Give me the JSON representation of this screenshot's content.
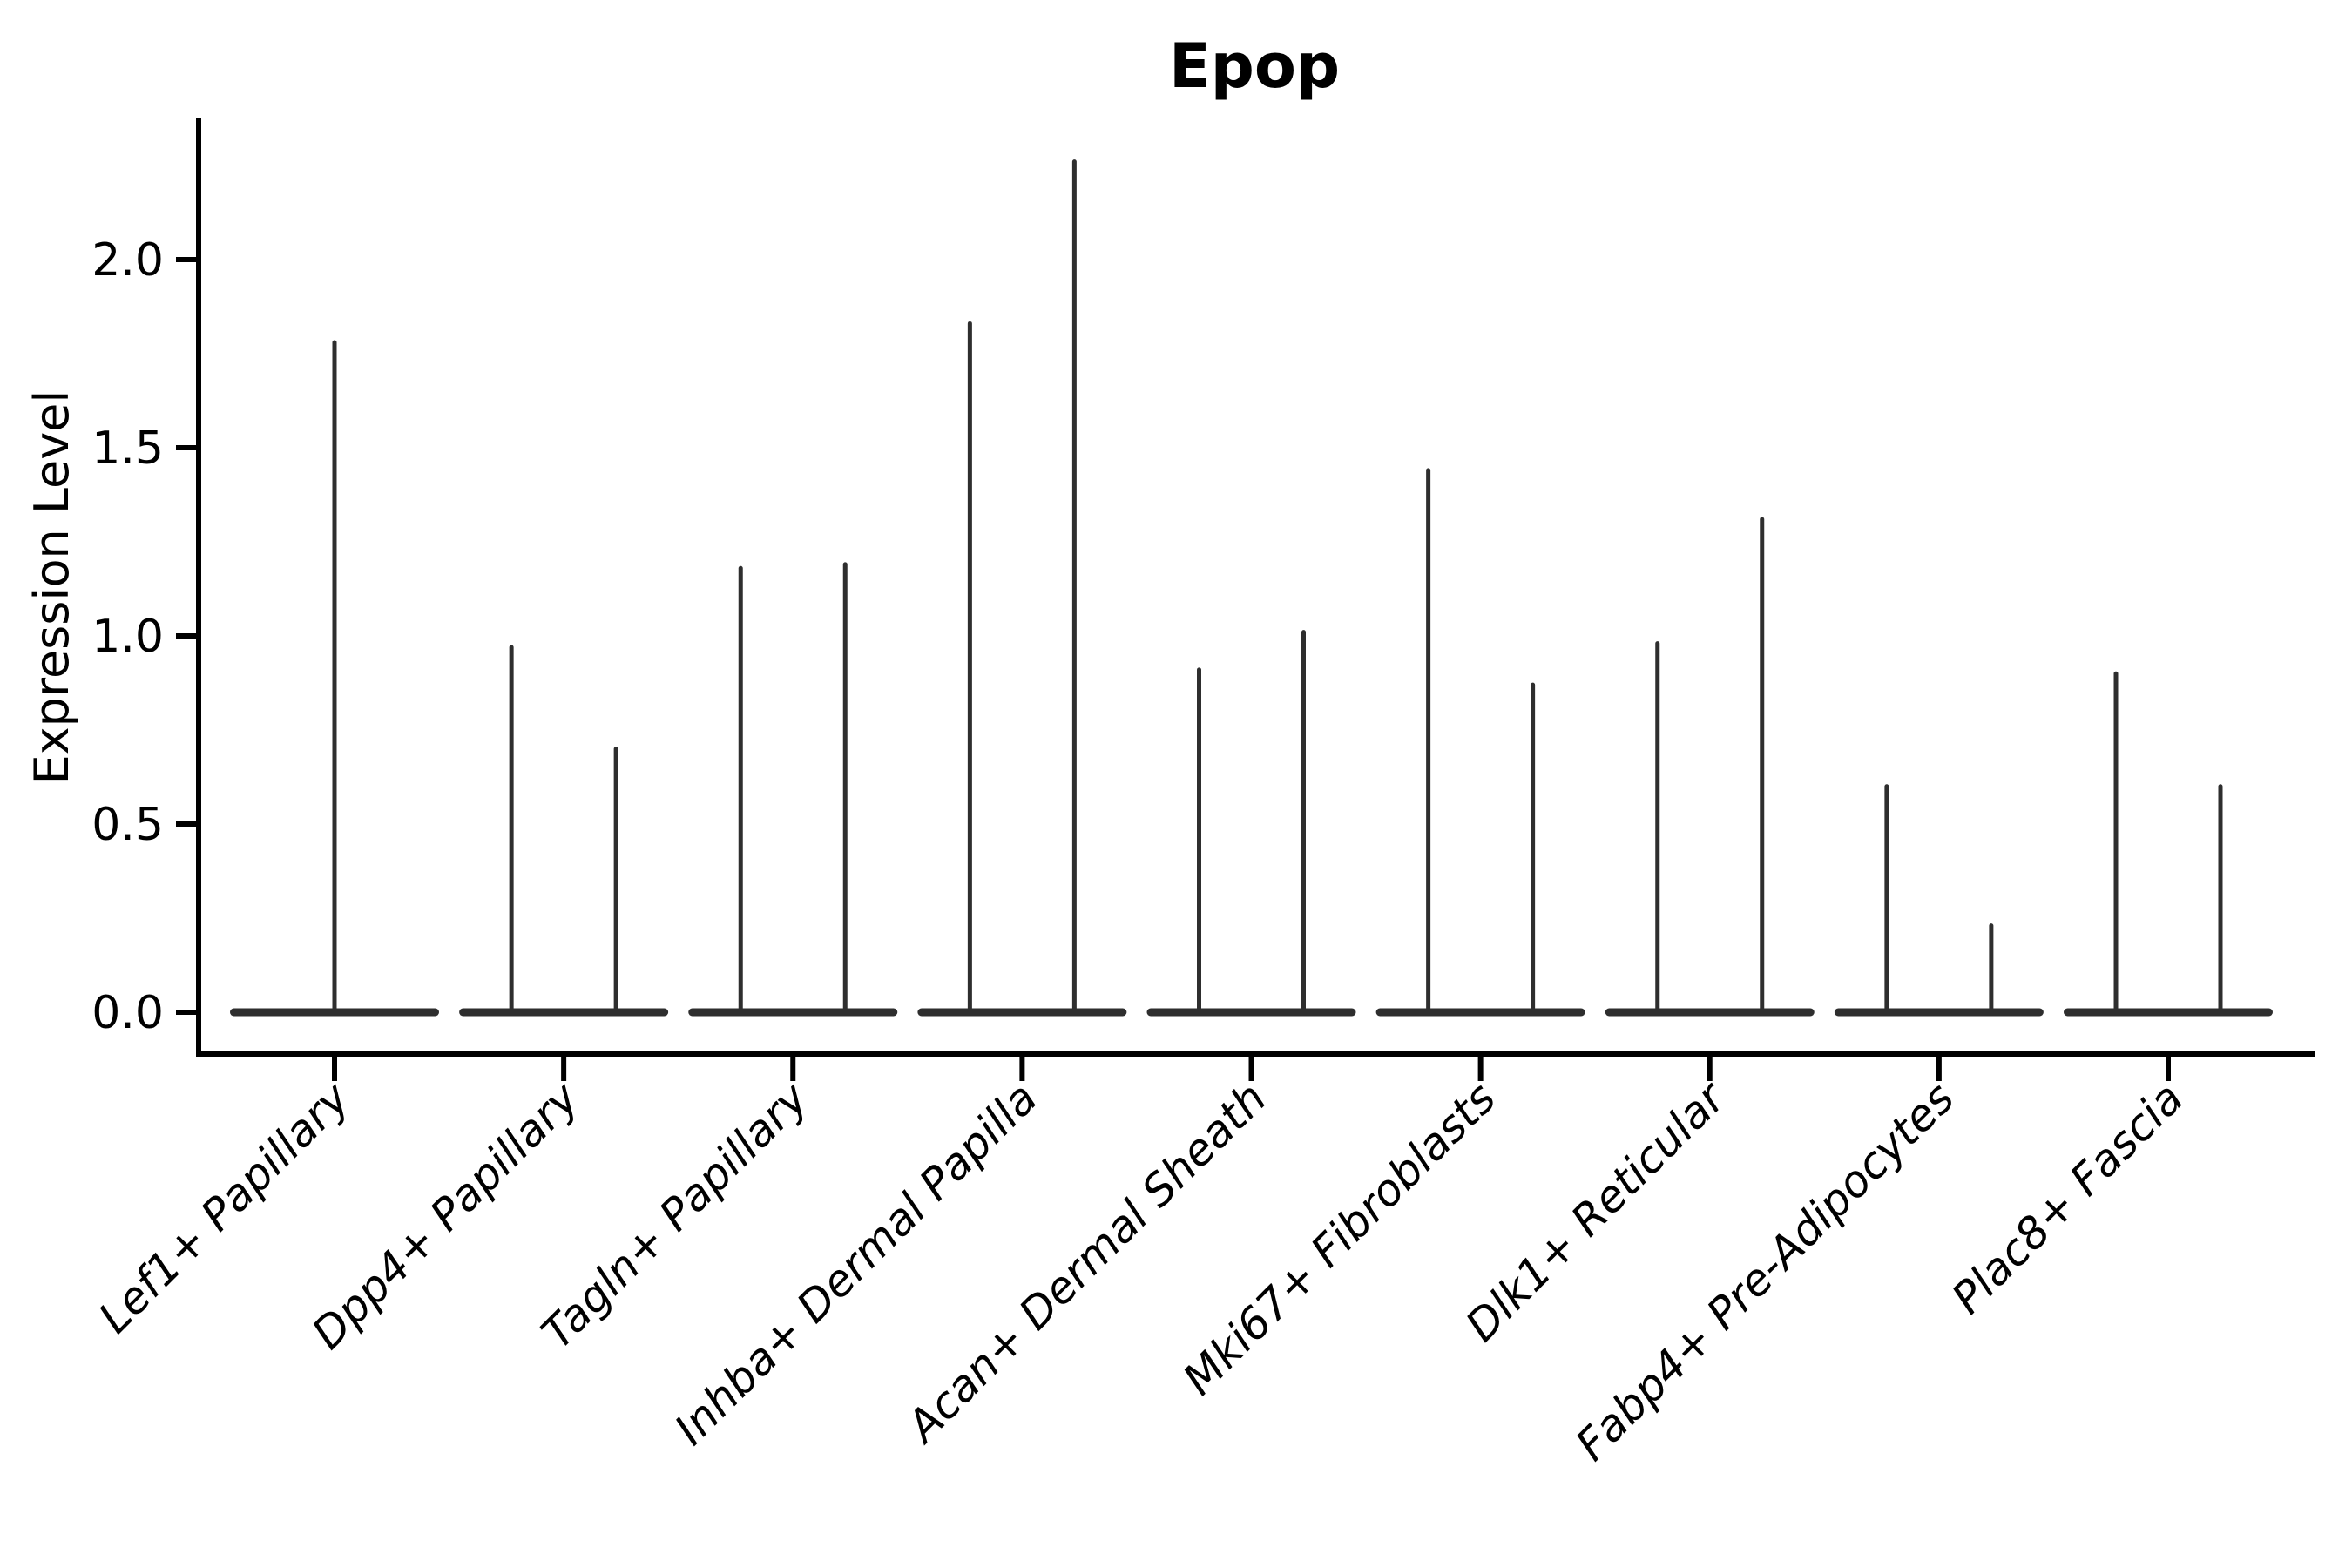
{
  "chart_data": {
    "type": "violin",
    "title": "Epop",
    "xlabel": "",
    "ylabel": "Expression Level",
    "grid": false,
    "legend": "none",
    "ylim": [
      -0.11,
      2.38
    ],
    "y_ticks": [
      0.0,
      0.5,
      1.0,
      1.5,
      2.0
    ],
    "y_tick_labels": [
      "0.0",
      "0.5",
      "1.0",
      "1.5",
      "2.0"
    ],
    "categories": [
      "Lef1+ Papillary",
      "Dpp4+ Papillary",
      "Tagln+ Papillary",
      "Inhba+ Dermal Papilla",
      "Acan+ Dermal Sheath",
      "Mki67+ Fibroblasts",
      "Dlk1+ Reticular",
      "Fabp4+ Pre-Adipocytes",
      "Plac8+ Fascia"
    ],
    "description": "Violin plot of Epop expression; bulk of cells at expression 0 (wide flat base of each violin) with thin density spikes rising to the maximum expression value",
    "violins": [
      {
        "category": "Lef1+ Papillary",
        "baseline_value": 0.0,
        "spikes": [
          {
            "pos": "center",
            "max": 1.78
          }
        ]
      },
      {
        "category": "Dpp4+ Papillary",
        "baseline_value": 0.0,
        "spikes": [
          {
            "pos": "left",
            "max": 0.97
          },
          {
            "pos": "right",
            "max": 0.7
          }
        ]
      },
      {
        "category": "Tagln+ Papillary",
        "baseline_value": 0.0,
        "spikes": [
          {
            "pos": "left",
            "max": 1.18
          },
          {
            "pos": "right",
            "max": 1.19
          }
        ]
      },
      {
        "category": "Inhba+ Dermal Papilla",
        "baseline_value": 0.0,
        "spikes": [
          {
            "pos": "left",
            "max": 1.83
          },
          {
            "pos": "right",
            "max": 2.26
          }
        ]
      },
      {
        "category": "Acan+ Dermal Sheath",
        "baseline_value": 0.0,
        "spikes": [
          {
            "pos": "left",
            "max": 0.91
          },
          {
            "pos": "right",
            "max": 1.01
          }
        ]
      },
      {
        "category": "Mki67+ Fibroblasts",
        "baseline_value": 0.0,
        "spikes": [
          {
            "pos": "left",
            "max": 1.44
          },
          {
            "pos": "right",
            "max": 0.87
          }
        ]
      },
      {
        "category": "Dlk1+ Reticular",
        "baseline_value": 0.0,
        "spikes": [
          {
            "pos": "left",
            "max": 0.98
          },
          {
            "pos": "right",
            "max": 1.31
          }
        ]
      },
      {
        "category": "Fabp4+ Pre-Adipocytes",
        "baseline_value": 0.0,
        "spikes": [
          {
            "pos": "left",
            "max": 0.6
          },
          {
            "pos": "right",
            "max": 0.23
          }
        ]
      },
      {
        "category": "Plac8+ Fascia",
        "baseline_value": 0.0,
        "spikes": [
          {
            "pos": "left",
            "max": 0.9
          },
          {
            "pos": "right",
            "max": 0.6
          }
        ]
      }
    ]
  },
  "style": {
    "violin_color": "#2e2e2e",
    "axis_color": "#000000",
    "text_color": "#000000",
    "background_color": "#ffffff"
  }
}
